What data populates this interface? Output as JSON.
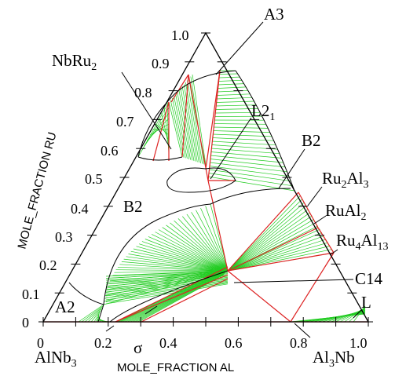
{
  "diagram": {
    "axes": {
      "ru_label": "MOLE_FRACTION RU",
      "al_label": "MOLE_FRACTION AL",
      "ru_ticks": [
        "0",
        "0.1",
        "0.2",
        "0.3",
        "0.4",
        "0.5",
        "0.6",
        "0.7",
        "0.8",
        "0.9",
        "1.0"
      ],
      "al_ticks": [
        "0",
        "0.2",
        "0.4",
        "0.6",
        "0.8",
        "1.0"
      ]
    },
    "phase_labels": {
      "a3": "A3",
      "nbru2": "NbRu",
      "nbru2_sub": "2",
      "l21": "L2",
      "l21_sub": "1",
      "b2_right": "B2",
      "b2_left": "B2",
      "ru2al3": "Ru",
      "ru2al3_sub1": "2",
      "ru2al3_mid": "Al",
      "ru2al3_sub2": "3",
      "rual2": "RuAl",
      "rual2_sub": "2",
      "ru4al13": "Ru",
      "ru4al13_sub1": "4",
      "ru4al13_mid": "Al",
      "ru4al13_sub2": "13",
      "c14": "C14",
      "l": "L",
      "a2": "A2",
      "sigma": "σ",
      "alnb3": "AlNb",
      "alnb3_sub": "3",
      "al3nb": "Al",
      "al3nb_sub": "3",
      "al3nb_end": "Nb"
    },
    "colors": {
      "tie_lines": "#22cc22",
      "phase_boundaries": "#dd2222",
      "outline": "#000000"
    }
  }
}
